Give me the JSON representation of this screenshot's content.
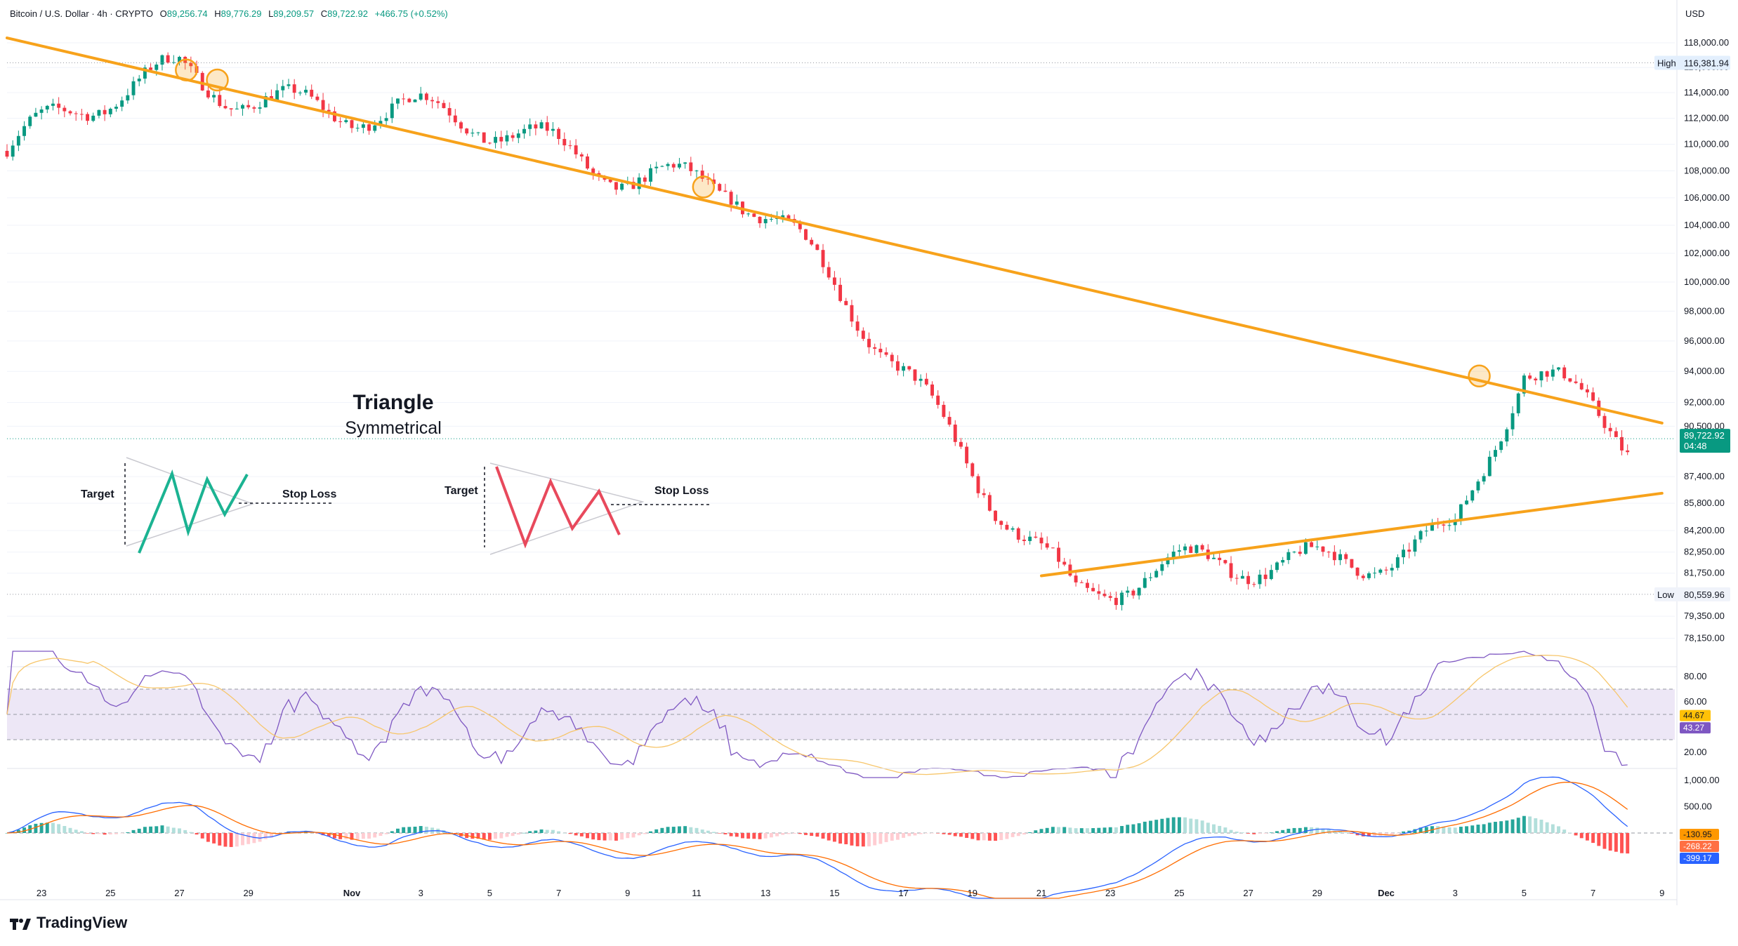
{
  "header": {
    "symbol": "Bitcoin / U.S. Dollar · 4h · CRYPTO",
    "open_label": "O",
    "open": "89,256.74",
    "high_label": "H",
    "high": "89,776.29",
    "low_label": "L",
    "low": "89,209.57",
    "close_label": "C",
    "close": "89,722.92",
    "change": "+466.75 (+0.52%)",
    "currency": "USD"
  },
  "brand": {
    "name": "TradingView"
  },
  "colors": {
    "up": "#089981",
    "down": "#f23645",
    "trendline": "#f7a21b",
    "rsi_line": "#7e57c2",
    "rsi_ma": "#f7c66b",
    "rsi_band": "#ede7f6",
    "macd_line": "#2962ff",
    "signal_line": "#ff6d00",
    "hist_up_strong": "#26a69a",
    "hist_up_weak": "#b2dfdb",
    "hist_down_strong": "#ff5252",
    "hist_down_weak": "#ffcdd2"
  },
  "annotations": {
    "title": "Triangle",
    "subtitle": "Symmetrical",
    "target_label": "Target",
    "stop_label": "Stop Loss"
  },
  "price_axis": {
    "ticks": [
      "118,000.00",
      "116,000.00",
      "114,000.00",
      "112,000.00",
      "110,000.00",
      "108,000.00",
      "106,000.00",
      "104,000.00",
      "102,000.00",
      "100,000.00",
      "98,000.00",
      "96,000.00",
      "94,000.00",
      "92,000.00",
      "90,500.00",
      "87,400.00",
      "85,800.00",
      "84,200.00",
      "82,950.00",
      "81,750.00",
      "79,350.00",
      "78,150.00"
    ],
    "high_label": "High",
    "high_value": "116,381.94",
    "low_label": "Low",
    "low_value": "80,559.96",
    "last_price": "89,722.92",
    "countdown": "04:48"
  },
  "rsi_axis": {
    "ticks": [
      "80.00",
      "60.00",
      "20.00"
    ],
    "rsi_value": "43.27",
    "ma_value": "44.67"
  },
  "macd_axis": {
    "ticks": [
      "1,000.00",
      "500.00"
    ],
    "hist_value": "-130.95",
    "signal_value": "-268.22",
    "macd_value": "-399.17"
  },
  "time_axis": {
    "labels": [
      "23",
      "25",
      "27",
      "29",
      "Nov",
      "3",
      "5",
      "7",
      "9",
      "11",
      "13",
      "15",
      "17",
      "19",
      "21",
      "23",
      "25",
      "27",
      "29",
      "Dec",
      "3",
      "5",
      "7",
      "9"
    ]
  },
  "chart_data": {
    "type": "candlestick",
    "symbol": "Bitcoin / U.S. Dollar",
    "interval": "4h",
    "ylim": [
      77000,
      119500
    ],
    "key_points": [
      {
        "date": "Oct 27",
        "price": 115500
      },
      {
        "date": "Nov 11",
        "price": 107000
      },
      {
        "date": "Nov 21",
        "price": 80560
      },
      {
        "date": "Dec 2",
        "price": 84000
      },
      {
        "date": "Dec 4",
        "price": 93500
      },
      {
        "date": "Dec 7",
        "price": 89723
      }
    ],
    "trendlines": [
      {
        "name": "resistance",
        "from": {
          "date": "Oct 22",
          "price": 118400
        },
        "to": {
          "date": "Dec 8",
          "price": 90700
        }
      },
      {
        "name": "support",
        "from": {
          "date": "Nov 20",
          "price": 81600
        },
        "to": {
          "date": "Dec 8",
          "price": 86400
        }
      }
    ],
    "indicators": [
      "RSI",
      "MACD"
    ]
  }
}
